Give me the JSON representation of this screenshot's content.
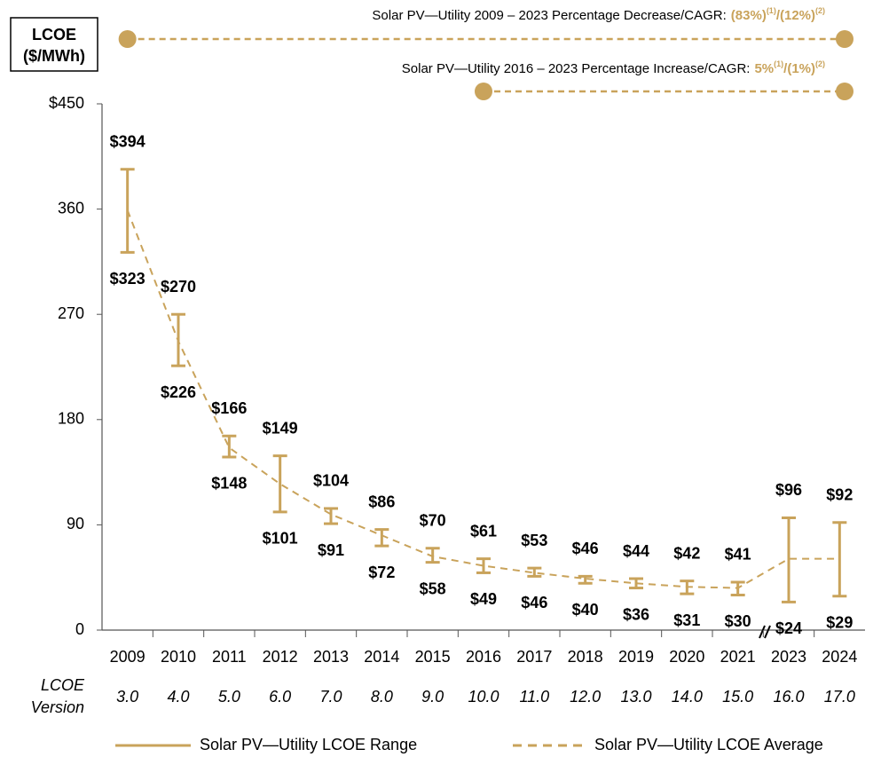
{
  "chart_data": {
    "type": "range",
    "ylabel": [
      "LCOE",
      "($/MWh)"
    ],
    "row_label": [
      "LCOE",
      "Version"
    ],
    "annotations": [
      {
        "text": "Solar PV—Utility 2009 – 2023 Percentage Decrease/CAGR:",
        "value1": "(83%)",
        "note1": "(1)",
        "separator": "/",
        "value2": "(12%)",
        "note2": "(2)"
      },
      {
        "text": "Solar PV—Utility 2016 – 2023 Percentage Increase/CAGR:",
        "value1": "5%",
        "note1": "(1)",
        "separator": "/",
        "value2": "(1%)",
        "note2": "(2)"
      }
    ],
    "categories": [
      "2009",
      "2010",
      "2011",
      "2012",
      "2013",
      "2014",
      "2015",
      "2016",
      "2017",
      "2018",
      "2019",
      "2020",
      "2021",
      "2023",
      "2024"
    ],
    "versions": [
      "3.0",
      "4.0",
      "5.0",
      "6.0",
      "7.0",
      "8.0",
      "9.0",
      "10.0",
      "11.0",
      "12.0",
      "13.0",
      "14.0",
      "15.0",
      "16.0",
      "17.0"
    ],
    "ylim": [
      0,
      450
    ],
    "yticks": [
      0,
      90,
      180,
      270,
      360,
      {
        "value": 450,
        "label": "$450"
      }
    ],
    "series": [
      {
        "name": "Solar PV—Utility LCOE Range",
        "color": "#c9a35b",
        "low": [
          323,
          226,
          148,
          101,
          91,
          72,
          58,
          49,
          46,
          40,
          36,
          31,
          30,
          24,
          29
        ],
        "low_labels": [
          "$323",
          "$226",
          "$148",
          "$101",
          "$91",
          "$72",
          "$58",
          "$49",
          "$46",
          "$40",
          "$36",
          "$31",
          "$30",
          "$24",
          "$29"
        ],
        "high": [
          394,
          270,
          166,
          149,
          104,
          86,
          70,
          61,
          53,
          46,
          44,
          42,
          41,
          96,
          92
        ],
        "high_labels": [
          "$394",
          "$270",
          "$166",
          "$149",
          "$104",
          "$86",
          "$70",
          "$61",
          "$53",
          "$46",
          "$44",
          "$42",
          "$41",
          "$96",
          "$92"
        ]
      },
      {
        "name": "Solar PV—Utility LCOE Average",
        "color": "#c9a35b",
        "values": [
          359,
          247,
          156,
          125,
          99,
          81,
          63,
          55,
          49,
          44,
          40,
          37,
          36,
          61,
          61
        ]
      }
    ]
  }
}
